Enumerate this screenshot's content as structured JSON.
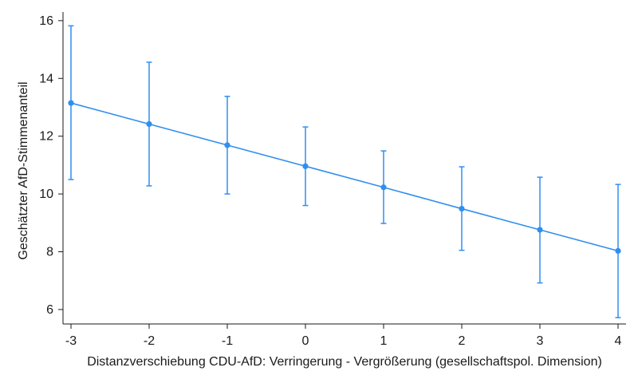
{
  "chart_data": {
    "type": "line",
    "title": "",
    "xlabel": "Distanzverschiebung CDU-AfD: Verringerung - Vergrößerung (gesellschaftspol. Dimension)",
    "ylabel": "Geschätzter AfD-Stimmenanteil",
    "x_ticks": [
      -3,
      -2,
      -1,
      0,
      1,
      2,
      3,
      4
    ],
    "y_ticks": [
      6,
      8,
      10,
      12,
      14,
      16
    ],
    "xlim": [
      -3,
      4
    ],
    "ylim": [
      5.5,
      16.3
    ],
    "grid": false,
    "line_color": "#2f8ff0",
    "series": [
      {
        "x": [
          -3,
          -2,
          -1,
          0,
          1,
          2,
          3,
          4
        ],
        "y": [
          13.15,
          12.42,
          11.69,
          10.96,
          10.23,
          9.49,
          8.76,
          8.03
        ],
        "ci_low": [
          10.5,
          10.28,
          10.0,
          9.6,
          8.98,
          8.05,
          6.92,
          5.72
        ],
        "ci_high": [
          15.82,
          14.56,
          13.38,
          12.32,
          11.49,
          10.94,
          10.58,
          10.33
        ]
      }
    ]
  }
}
